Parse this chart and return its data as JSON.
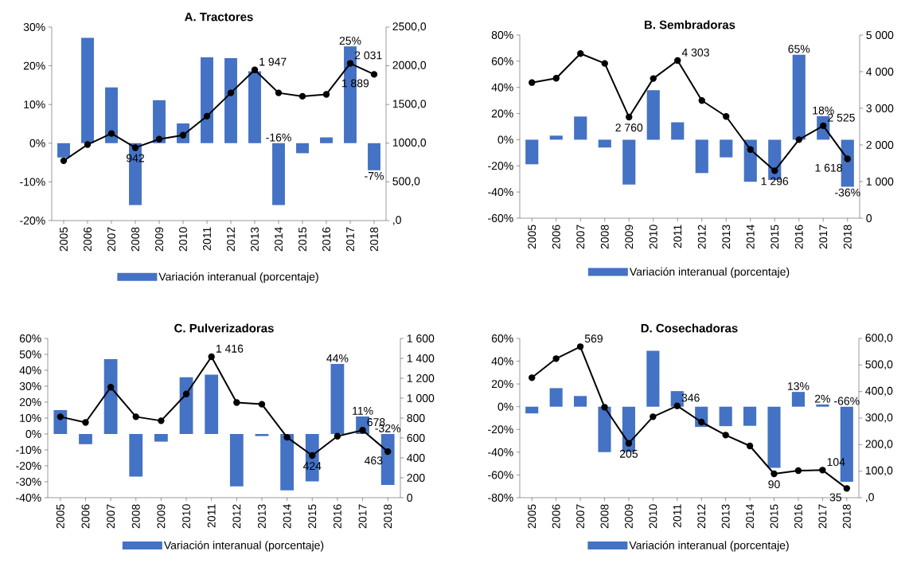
{
  "chart_data": [
    {
      "type": "bar",
      "title": "A. Tractores",
      "categories": [
        "2005",
        "2006",
        "2007",
        "2008",
        "2009",
        "2010",
        "2011",
        "2012",
        "2013",
        "2014",
        "2015",
        "2016",
        "2017",
        "2018"
      ],
      "legend": "bottom",
      "ylim": [
        -20,
        30
      ],
      "yticks": [
        {
          "value": -20,
          "label": "-20%"
        },
        {
          "value": -10,
          "label": "-10%"
        },
        {
          "value": 0,
          "label": "0%"
        },
        {
          "value": 10,
          "label": "10%"
        },
        {
          "value": 20,
          "label": "20%"
        },
        {
          "value": 30,
          "label": "30%"
        }
      ],
      "y2lim": [
        0,
        2500
      ],
      "y2ticks": [
        {
          "value": 0,
          "label": ",0"
        },
        {
          "value": 500,
          "label": "500,0"
        },
        {
          "value": 1000,
          "label": "1000,0"
        },
        {
          "value": 1500,
          "label": "1500,0"
        },
        {
          "value": 2000,
          "label": "2000,0"
        },
        {
          "value": 2500,
          "label": "2500,0"
        }
      ],
      "series": [
        {
          "name": "Variación interanual (porcentaje)",
          "color": "#4472c4",
          "values": [
            -3.7,
            27.2,
            14.4,
            -16.0,
            11.1,
            5.1,
            22.2,
            22.0,
            18.6,
            -16,
            -2.6,
            1.5,
            25,
            -7
          ],
          "value_labels": [
            null,
            null,
            null,
            null,
            null,
            null,
            null,
            null,
            null,
            "-16%",
            null,
            null,
            "25%",
            "-7%"
          ]
        },
        {
          "type": "line",
          "axis": "y2",
          "color": "#000000",
          "marker": "circle",
          "values": [
            773,
            982,
            1125,
            942,
            1052,
            1103,
            1349,
            1650,
            1947,
            1650,
            1606,
            1631,
            2031,
            1889
          ],
          "value_labels": [
            null,
            null,
            null,
            "942",
            null,
            null,
            null,
            null,
            "1 947",
            null,
            null,
            null,
            "2 031",
            "1 889"
          ]
        }
      ]
    },
    {
      "type": "bar",
      "title": "B. Sembradoras",
      "categories": [
        "2005",
        "2006",
        "2007",
        "2008",
        "2009",
        "2010",
        "2011",
        "2012",
        "2013",
        "2014",
        "2015",
        "2016",
        "2017",
        "2018"
      ],
      "legend": "bottom",
      "ylim": [
        -60,
        80
      ],
      "yticks": [
        {
          "value": -60,
          "label": "-60%"
        },
        {
          "value": -40,
          "label": "-40%"
        },
        {
          "value": -20,
          "label": "-20%"
        },
        {
          "value": 0,
          "label": "0%"
        },
        {
          "value": 20,
          "label": "20%"
        },
        {
          "value": 40,
          "label": "40%"
        },
        {
          "value": 60,
          "label": "60%"
        },
        {
          "value": 80,
          "label": "80%"
        }
      ],
      "y2lim": [
        0,
        5000
      ],
      "y2ticks": [
        {
          "value": 0,
          "label": "0"
        },
        {
          "value": 1000,
          "label": "1 000"
        },
        {
          "value": 2000,
          "label": "2 000"
        },
        {
          "value": 3000,
          "label": "3 000"
        },
        {
          "value": 4000,
          "label": "4 000"
        },
        {
          "value": 5000,
          "label": "5 000"
        }
      ],
      "series": [
        {
          "name": "Variación interanual (porcentaje)",
          "color": "#4472c4",
          "values": [
            -18.8,
            3.1,
            17.7,
            -6.0,
            -34.3,
            37.9,
            13.3,
            -25.5,
            -13.5,
            -32.1,
            -30.8,
            65,
            18,
            -36
          ],
          "value_labels": [
            null,
            null,
            null,
            null,
            null,
            null,
            null,
            null,
            null,
            null,
            null,
            "65%",
            "18%",
            "-36%"
          ]
        },
        {
          "type": "line",
          "axis": "y2",
          "color": "#000000",
          "marker": "circle",
          "values": [
            3703,
            3821,
            4494,
            4225,
            2760,
            3813,
            4303,
            3212,
            2777,
            1875,
            1296,
            2144,
            2525,
            1618
          ],
          "value_labels": [
            null,
            null,
            null,
            null,
            "2 760",
            null,
            "4 303",
            null,
            null,
            null,
            "1 296",
            null,
            "2 525",
            "1 618"
          ]
        }
      ]
    },
    {
      "type": "bar",
      "title": "C. Pulverizadoras",
      "categories": [
        "2005",
        "2006",
        "2007",
        "2008",
        "2009",
        "2010",
        "2011",
        "2012",
        "2013",
        "2014",
        "2015",
        "2016",
        "2017",
        "2018"
      ],
      "legend": "bottom",
      "ylim": [
        -40,
        60
      ],
      "yticks": [
        {
          "value": -40,
          "label": "-40%"
        },
        {
          "value": -30,
          "label": "-30%"
        },
        {
          "value": -20,
          "label": "-20%"
        },
        {
          "value": -10,
          "label": "-10%"
        },
        {
          "value": 0,
          "label": "0%"
        },
        {
          "value": 10,
          "label": "10%"
        },
        {
          "value": 20,
          "label": "20%"
        },
        {
          "value": 30,
          "label": "30%"
        },
        {
          "value": 40,
          "label": "40%"
        },
        {
          "value": 50,
          "label": "50%"
        },
        {
          "value": 60,
          "label": "60%"
        }
      ],
      "y2lim": [
        0,
        1600
      ],
      "y2ticks": [
        {
          "value": 0,
          "label": "0"
        },
        {
          "value": 200,
          "label": "200"
        },
        {
          "value": 400,
          "label": "400"
        },
        {
          "value": 600,
          "label": "600"
        },
        {
          "value": 800,
          "label": "800"
        },
        {
          "value": 1000,
          "label": "1 000"
        },
        {
          "value": 1200,
          "label": "1 200"
        },
        {
          "value": 1400,
          "label": "1 400"
        },
        {
          "value": 1600,
          "label": "1 600"
        }
      ],
      "series": [
        {
          "name": "Variación interanual (porcentaje)",
          "color": "#4472c4",
          "values": [
            15.0,
            -6.4,
            47.0,
            -26.8,
            -4.8,
            35.6,
            37.2,
            -32.9,
            -1.3,
            -35.4,
            -29.7,
            44,
            11,
            -32
          ],
          "value_labels": [
            null,
            null,
            null,
            null,
            null,
            null,
            null,
            null,
            null,
            null,
            null,
            "44%",
            "11%",
            "-32%"
          ]
        },
        {
          "type": "line",
          "axis": "y2",
          "color": "#000000",
          "marker": "circle",
          "values": [
            813,
            756,
            1110,
            813,
            773,
            1042,
            1416,
            956,
            939,
            607,
            424,
            618,
            678,
            463
          ],
          "value_labels": [
            null,
            null,
            null,
            null,
            null,
            null,
            "1 416",
            null,
            null,
            null,
            "424",
            null,
            "678",
            "463"
          ]
        }
      ]
    },
    {
      "type": "bar",
      "title": "D. Cosechadoras",
      "categories": [
        "2005",
        "2006",
        "2007",
        "2008",
        "2009",
        "2010",
        "2011",
        "2012",
        "2013",
        "2014",
        "2015",
        "2016",
        "2017",
        "2018"
      ],
      "legend": "bottom",
      "ylim": [
        -80,
        60
      ],
      "yticks": [
        {
          "value": -80,
          "label": "-80%"
        },
        {
          "value": -60,
          "label": "-60%"
        },
        {
          "value": -40,
          "label": "-40%"
        },
        {
          "value": -20,
          "label": "-20%"
        },
        {
          "value": 0,
          "label": "0%"
        },
        {
          "value": 20,
          "label": "20%"
        },
        {
          "value": 40,
          "label": "40%"
        },
        {
          "value": 60,
          "label": "60%"
        }
      ],
      "y2lim": [
        0,
        600
      ],
      "y2ticks": [
        {
          "value": 0,
          "label": ",0"
        },
        {
          "value": 100,
          "label": "100,0"
        },
        {
          "value": 200,
          "label": "200,0"
        },
        {
          "value": 300,
          "label": "300,0"
        },
        {
          "value": 400,
          "label": "400,0"
        },
        {
          "value": 500,
          "label": "500,0"
        },
        {
          "value": 600,
          "label": "600,0"
        }
      ],
      "series": [
        {
          "name": "Variación interanual (porcentaje)",
          "color": "#4472c4",
          "values": [
            -5.9,
            16.3,
            9.4,
            -40.0,
            -39.7,
            49.1,
            13.7,
            -17.8,
            -17.1,
            -16.8,
            -53.7,
            13,
            2,
            -66
          ],
          "value_labels": [
            null,
            null,
            null,
            null,
            null,
            null,
            null,
            null,
            null,
            null,
            null,
            "13%",
            "2%",
            "-66%"
          ]
        },
        {
          "type": "line",
          "axis": "y2",
          "color": "#000000",
          "marker": "circle",
          "values": [
            452,
            524,
            569,
            341,
            205,
            305,
            346,
            285,
            236,
            195,
            90,
            102,
            104,
            35
          ],
          "value_labels": [
            null,
            null,
            "569",
            null,
            "205",
            null,
            "346",
            null,
            null,
            null,
            "90",
            null,
            "104",
            "35"
          ]
        }
      ]
    }
  ]
}
